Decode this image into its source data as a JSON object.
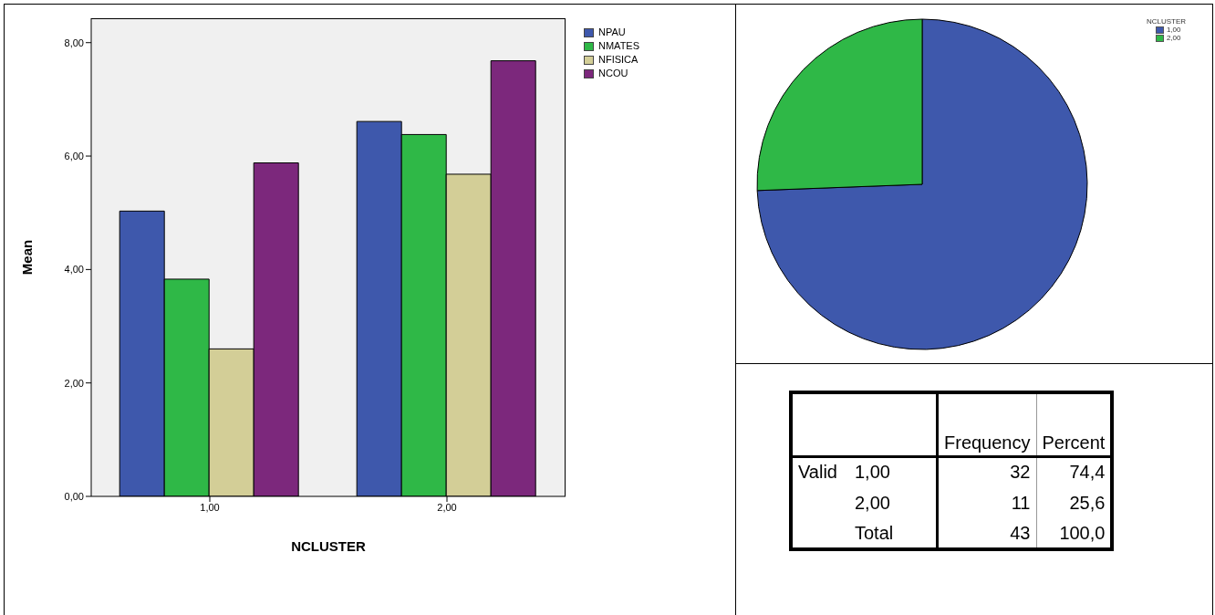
{
  "chart_data": [
    {
      "type": "bar",
      "xlabel": "NCLUSTER",
      "ylabel": "Mean",
      "categories": [
        "1,00",
        "2,00"
      ],
      "series": [
        {
          "name": "NPAU",
          "color": "#3e58ac",
          "values": [
            5.03,
            6.61
          ]
        },
        {
          "name": "NMATES",
          "color": "#2fb847",
          "values": [
            3.83,
            6.38
          ]
        },
        {
          "name": "NFISICA",
          "color": "#d3ce97",
          "values": [
            2.6,
            5.68
          ]
        },
        {
          "name": "NCOU",
          "color": "#7c287c",
          "values": [
            5.88,
            7.68
          ]
        }
      ],
      "ylim": [
        0,
        8.43
      ],
      "yticks": [
        {
          "value": 0,
          "label": "0,00"
        },
        {
          "value": 2,
          "label": "2,00"
        },
        {
          "value": 4,
          "label": "4,00"
        },
        {
          "value": 6,
          "label": "6,00"
        },
        {
          "value": 8,
          "label": "8,00"
        }
      ],
      "grid": false,
      "legend": "top right"
    },
    {
      "type": "pie",
      "legend_title": "NCLUSTER",
      "categories": [
        "1,00",
        "2,00"
      ],
      "values": [
        74.4,
        25.6
      ],
      "colors": [
        "#3e58ac",
        "#2fb847"
      ],
      "legend": "top right"
    },
    {
      "type": "other",
      "annotations": [
        "Frequency",
        "Percent",
        "Valid",
        "1,00",
        "32",
        "74,4",
        "2,00",
        "11",
        "25,6",
        "Total",
        "43",
        "100,0"
      ]
    }
  ]
}
